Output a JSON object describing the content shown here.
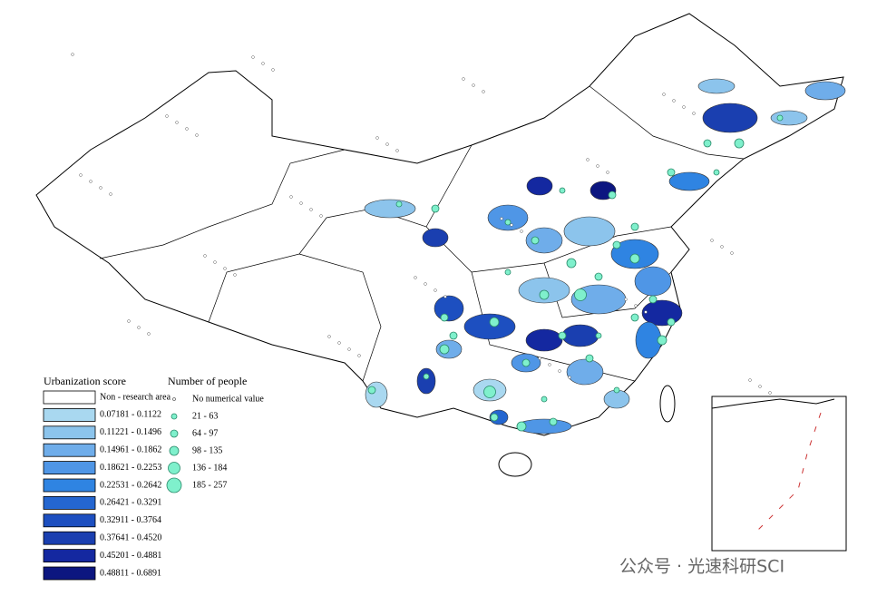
{
  "legend": {
    "title": "Urbanization score",
    "classes": [
      {
        "label": "Non - research area",
        "color": "#ffffff"
      },
      {
        "label": "0.07181 - 0.1122",
        "color": "#a9d8f0"
      },
      {
        "label": "0.11221 - 0.1496",
        "color": "#8cc4ec"
      },
      {
        "label": "0.14961 - 0.1862",
        "color": "#6fadea"
      },
      {
        "label": "0.18621 - 0.2253",
        "color": "#4f96e6"
      },
      {
        "label": "0.22531 - 0.2642",
        "color": "#2f84e2"
      },
      {
        "label": "0.26421 - 0.3291",
        "color": "#2466d0"
      },
      {
        "label": "0.32911 - 0.3764",
        "color": "#1d4fc0"
      },
      {
        "label": "0.37641 - 0.4520",
        "color": "#1a3fb0"
      },
      {
        "label": "0.45201 - 0.4881",
        "color": "#1428a0"
      },
      {
        "label": "0.48811 - 0.6891",
        "color": "#0c1680"
      }
    ]
  },
  "people_legend": {
    "title": "Number of people",
    "color": "#7ff0cc",
    "classes": [
      "No numerical value",
      "21 - 63",
      "64 - 97",
      "98 - 135",
      "136 - 184",
      "185 - 257"
    ]
  },
  "watermark": "公众号 · 光速科研SCI"
}
